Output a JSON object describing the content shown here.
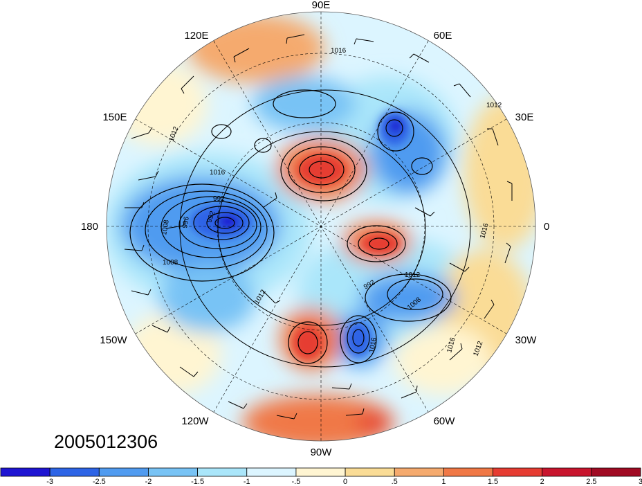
{
  "timestamp": "2005012306",
  "longitude_labels": {
    "90E": "90E",
    "60E": "60E",
    "30E": "30E",
    "0": "0",
    "30W": "30W",
    "60W": "60W",
    "90W": "90W",
    "120W": "120W",
    "150W": "150W",
    "180": "180",
    "150E": "150E",
    "120E": "120E"
  },
  "contour_labels": [
    "1016",
    "1012",
    "1012",
    "1016",
    "992",
    "996",
    "1008",
    "1008",
    "992",
    "1012",
    "1012",
    "992",
    "1008",
    "1016",
    "1016",
    "1012",
    "1016"
  ],
  "colorbar": {
    "colors": [
      "#1e14d2",
      "#2d64e6",
      "#509bf0",
      "#78c3f5",
      "#aae6fa",
      "#dcf5ff",
      "#fff5d2",
      "#fadc96",
      "#f5aa6e",
      "#f07846",
      "#e63c32",
      "#c8142d",
      "#a00a23"
    ],
    "tick_labels": [
      "-3",
      "-2.5",
      "-2",
      "-1.5",
      "-1",
      "-.5",
      "0",
      ".5",
      "1",
      "1.5",
      "2",
      "2.5",
      "3"
    ]
  }
}
